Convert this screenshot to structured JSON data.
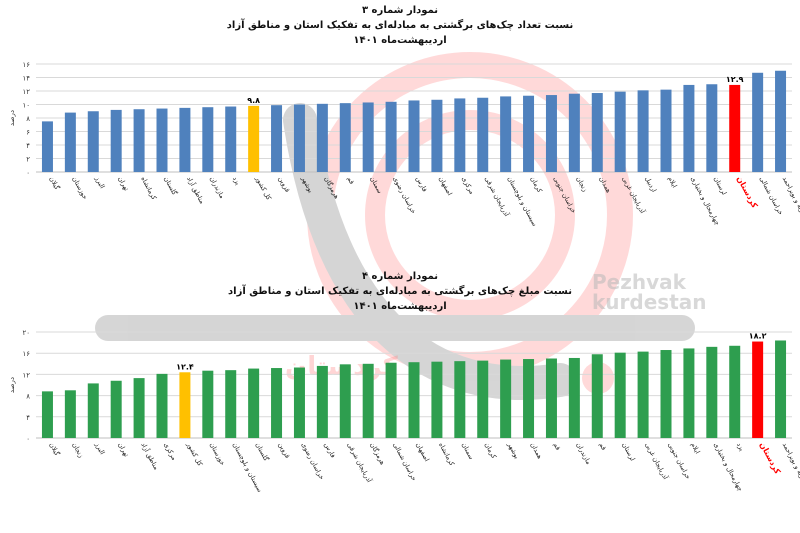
{
  "watermark": {
    "brand_line1": "Pezhvak",
    "brand_line2": "kurdestan",
    "brand_fa": "کردستان"
  },
  "chart_data": [
    {
      "type": "bar",
      "title": "نمودار شماره ۳",
      "subtitle": "نسبت تعداد چک‌های برگشتی به مبادله‌ای به تفکیک استان و مناطق آزاد",
      "subtitle2": "اردیبهشت‌ماه ۱۴۰۱",
      "ylabel": "درصد",
      "ylim": [
        0,
        16
      ],
      "yticks": [
        "۰",
        "۲",
        "۴",
        "۶",
        "۸",
        "۱۰",
        "۱۲",
        "۱۴",
        "۱۶"
      ],
      "grid": true,
      "categories": [
        "گیلان",
        "خوزستان",
        "البرز",
        "تهران",
        "کرمانشاه",
        "گلستان",
        "مناطق آزاد",
        "مازندران",
        "یزد",
        "کل کشور",
        "قزوین",
        "بوشهر",
        "هرمزگان",
        "قم",
        "سمنان",
        "خراسان رضوی",
        "فارس",
        "اصفهان",
        "مرکزی",
        "آذربایجان شرقی",
        "سیستان و بلوچستان",
        "کرمان",
        "خراسان جنوبی",
        "زنجان",
        "همدان",
        "آذربایجان غربی",
        "اردبیل",
        "ایلام",
        "چهارمحال و بختیاری",
        "لرستان",
        "کردستان",
        "خراسان شمالی",
        "کهگیلویه و بویراحمد"
      ],
      "values": [
        7.5,
        8.8,
        9.0,
        9.2,
        9.3,
        9.4,
        9.5,
        9.6,
        9.7,
        9.8,
        9.9,
        10.0,
        10.1,
        10.2,
        10.3,
        10.4,
        10.6,
        10.7,
        10.9,
        11.0,
        11.2,
        11.3,
        11.4,
        11.6,
        11.7,
        11.9,
        12.1,
        12.2,
        12.9,
        13.0,
        12.9,
        14.7,
        15.0
      ],
      "highlight_yellow": "کل کشور",
      "highlight_red": "کردستان",
      "data_labels": [
        {
          "category": "کل کشور",
          "text": "۹.۸"
        },
        {
          "category": "کردستان",
          "text": "۱۲.۹"
        }
      ],
      "colors": {
        "bar": "#4f81bd",
        "yellow": "#ffc000",
        "red": "#ff0000"
      }
    },
    {
      "type": "bar",
      "title": "نمودار شماره ۴",
      "subtitle": "نسبت مبلغ چک‌های برگشتی به مبادله‌ای به تفکیک استان و مناطق آزاد",
      "subtitle2": "اردیبهشت‌ماه ۱۴۰۱",
      "ylabel": "درصد",
      "ylim": [
        0,
        20
      ],
      "yticks": [
        "۰",
        "۴",
        "۸",
        "۱۲",
        "۱۶",
        "۲۰"
      ],
      "grid": true,
      "categories": [
        "گیلان",
        "زنجان",
        "البرز",
        "تهران",
        "مناطق آزاد",
        "مرکزی",
        "کل کشور",
        "خوزستان",
        "سیستان و بلوچستان",
        "گلستان",
        "قزوین",
        "خراسان رضوی",
        "فارس",
        "آذربایجان شرقی",
        "هرمزگان",
        "خراسان شمالی",
        "اصفهان",
        "کرمانشاه",
        "سمنان",
        "کرمان",
        "بوشهر",
        "همدان",
        "قم",
        "مازندران",
        "قم",
        "لرستان",
        "آذربایجان غربی",
        "خراسان جنوبی",
        "ایلام",
        "چهارمحال و بختیاری",
        "یزد",
        "کردستان",
        "کهگیلویه و بویراحمد"
      ],
      "values": [
        8.8,
        9.0,
        10.3,
        10.8,
        11.3,
        12.1,
        12.4,
        12.7,
        12.8,
        13.1,
        13.2,
        13.3,
        13.6,
        13.9,
        14.0,
        14.2,
        14.3,
        14.4,
        14.5,
        14.6,
        14.8,
        14.9,
        15.0,
        15.1,
        15.8,
        16.1,
        16.3,
        16.6,
        16.9,
        17.2,
        17.4,
        18.2,
        18.4
      ],
      "highlight_yellow": "کل کشور",
      "highlight_red": "کردستان",
      "data_labels": [
        {
          "category": "کل کشور",
          "text": "۱۲.۴"
        },
        {
          "category": "کردستان",
          "text": "۱۸.۲"
        }
      ],
      "colors": {
        "bar": "#2e9e4f",
        "yellow": "#ffc000",
        "red": "#ff0000"
      }
    }
  ]
}
